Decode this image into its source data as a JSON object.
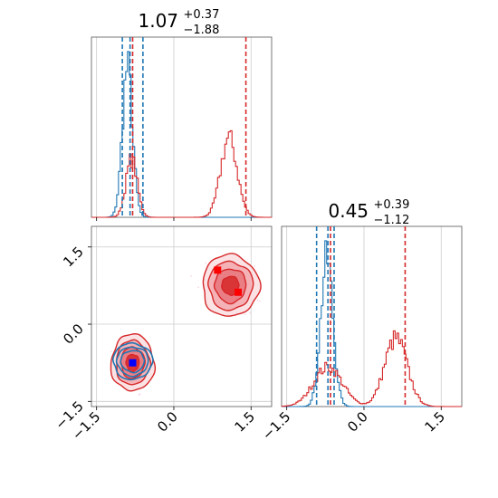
{
  "chart_data": [
    {
      "type": "histogram",
      "panel": "top-left (parameter 1 marginal)",
      "title": {
        "median": "1.07",
        "plus": "+0.37",
        "minus": "−1.88"
      },
      "xlim": [
        -1.6,
        1.9
      ],
      "grid": true,
      "series": [
        {
          "color": "#1f77b4",
          "shape": "unimodal",
          "peak": -0.9,
          "spread": 0.1,
          "quantile_lines": [
            -1.0,
            -0.85,
            -0.6
          ]
        },
        {
          "color": "#d62728",
          "shape": "bimodal",
          "peaks": [
            -0.82,
            1.07
          ],
          "quantile_lines": [
            -0.8,
            1.4
          ]
        }
      ]
    },
    {
      "type": "histogram",
      "panel": "bottom-right (parameter 2 marginal)",
      "title": {
        "median": "0.45",
        "plus": "+0.39",
        "minus": "−1.12"
      },
      "xlim": [
        -1.6,
        1.9
      ],
      "xticks": [
        "−1.5",
        "0.0",
        "1.5"
      ],
      "grid": true,
      "series": [
        {
          "color": "#1f77b4",
          "shape": "unimodal",
          "peak": -0.72,
          "spread": 0.12,
          "quantile_lines": [
            -0.92,
            -0.7,
            -0.58
          ]
        },
        {
          "color": "#d62728",
          "shape": "bimodal",
          "peaks": [
            -0.7,
            0.62
          ],
          "quantile_lines": [
            -0.65,
            0.8
          ]
        }
      ]
    },
    {
      "type": "contour",
      "panel": "bottom-left (joint parameter 1 vs parameter 2)",
      "xlim": [
        -1.6,
        1.9
      ],
      "ylim": [
        -1.6,
        1.9
      ],
      "xticks": [
        "−1.5",
        "0.0",
        "1.5"
      ],
      "yticks": [
        "−1.5",
        "0.0",
        "1.5"
      ],
      "grid": true,
      "series": [
        {
          "color": "#d62728",
          "fill": "#e8828a",
          "modes": [
            {
              "cx": -0.8,
              "cy": -0.75,
              "sx": 0.42,
              "sy": 0.55
            },
            {
              "cx": 1.1,
              "cy": 0.75,
              "sx": 0.55,
              "sy": 0.6
            }
          ]
        },
        {
          "color": "#1f77b4",
          "modes": [
            {
              "cx": -0.8,
              "cy": -0.72,
              "sx": 0.38,
              "sy": 0.35
            }
          ]
        }
      ],
      "markers": [
        {
          "x": -0.8,
          "y": -0.75,
          "color": "#0000ff",
          "shape": "square"
        },
        {
          "x": 0.85,
          "y": 1.05,
          "color": "#ff0000",
          "shape": "square"
        },
        {
          "x": 1.25,
          "y": 0.62,
          "color": "#ff0000",
          "shape": "square"
        }
      ]
    }
  ]
}
